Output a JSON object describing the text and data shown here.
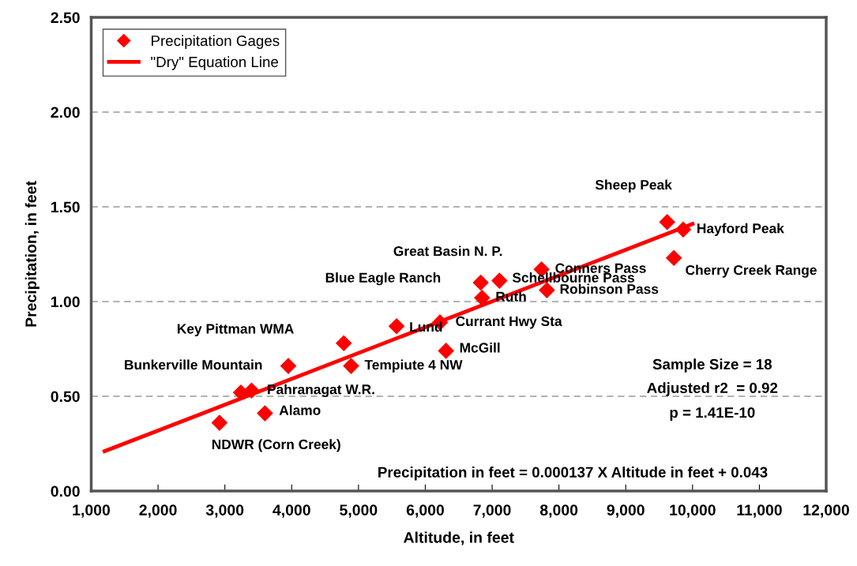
{
  "chart_data": {
    "type": "scatter",
    "xlabel": "Altitude, in feet",
    "ylabel": "Precipitation, in feet",
    "xlim": [
      1000,
      12000
    ],
    "ylim": [
      0,
      2.5
    ],
    "xticks": [
      {
        "value": 1000,
        "label": "1,000"
      },
      {
        "value": 2000,
        "label": "2,000"
      },
      {
        "value": 3000,
        "label": "3,000"
      },
      {
        "value": 4000,
        "label": "4,000"
      },
      {
        "value": 5000,
        "label": "5,000"
      },
      {
        "value": 6000,
        "label": "6,000"
      },
      {
        "value": 7000,
        "label": "7,000"
      },
      {
        "value": 8000,
        "label": "8,000"
      },
      {
        "value": 9000,
        "label": "9,000"
      },
      {
        "value": 10000,
        "label": "10,000"
      },
      {
        "value": 11000,
        "label": "11,000"
      },
      {
        "value": 12000,
        "label": "12,000"
      }
    ],
    "yticks": [
      {
        "value": 0,
        "label": "0.00"
      },
      {
        "value": 0.5,
        "label": "0.50"
      },
      {
        "value": 1,
        "label": "1.00"
      },
      {
        "value": 1.5,
        "label": "1.50"
      },
      {
        "value": 2,
        "label": "2.00"
      },
      {
        "value": 2.5,
        "label": "2.50"
      }
    ],
    "grid": "y",
    "legend": "top left",
    "series": [
      {
        "name": "Precipitation Gages",
        "marker": "diamond",
        "color": "#ff0000",
        "x": [
          2920,
          3240,
          3400,
          3600,
          3950,
          4780,
          4890,
          5570,
          6220,
          6310,
          6830,
          6850,
          7110,
          7740,
          7820,
          9620,
          9860,
          9720
        ],
        "values": [
          0.36,
          0.52,
          0.53,
          0.41,
          0.66,
          0.78,
          0.66,
          0.87,
          0.89,
          0.74,
          1.1,
          1.02,
          1.11,
          1.17,
          1.06,
          1.42,
          1.38,
          1.23
        ]
      },
      {
        "name": "\"Dry\" Equation Line",
        "type": "line",
        "line_style": "solid",
        "color": "#ff0000",
        "x": [
          1200,
          10000
        ],
        "values": [
          0.21,
          1.41
        ]
      }
    ],
    "annotations": [
      "Sheep Peak",
      "Hayford Peak",
      "Cherry Creek Range",
      "Great Basin N. P.",
      "Conners Pass",
      "Schellbourne Pass",
      "Robinson Pass",
      "Blue Eagle Ranch",
      "Ruth",
      "Lund",
      "Currant Hwy Sta",
      "McGill",
      "Key Pittman WMA",
      "Tempiute 4 NW",
      "Bunkerville Mountain",
      "Pahranagat W.R.",
      "Alamo",
      "NDWR (Corn Creek)",
      "Sample Size = 18",
      "Adjusted r2  = 0.92",
      "p = 1.41E-10",
      "Precipitation in feet = 0.000137 X Altitude in feet + 0.043"
    ]
  }
}
